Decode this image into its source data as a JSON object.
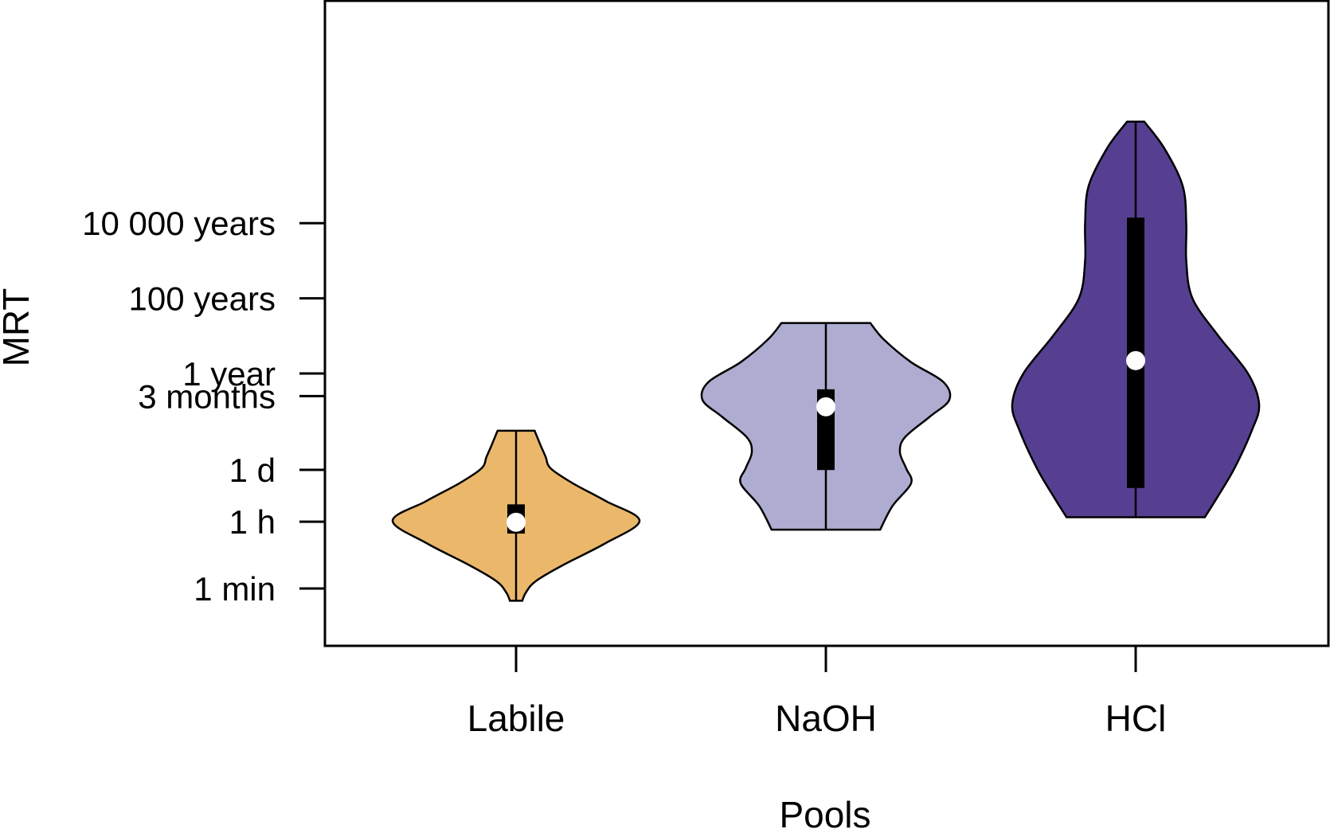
{
  "chart_data": {
    "type": "violin",
    "title": "",
    "xlabel": "Pools",
    "ylabel": "MRT",
    "y_scale": "log",
    "y_unit": "years",
    "y_ticks": [
      {
        "label": "1 min",
        "value": 1.9e-06
      },
      {
        "label": "1 h",
        "value": 0.000114
      },
      {
        "label": "1 d",
        "value": 0.00274
      },
      {
        "label": "3 months",
        "value": 0.25
      },
      {
        "label": "1 year",
        "value": 1
      },
      {
        "label": "100 years",
        "value": 100
      },
      {
        "label": "10 000 years",
        "value": 10000
      }
    ],
    "ylim": [
      5e-07,
      10000000
    ],
    "grid": false,
    "categories": [
      "Labile",
      "NaOH",
      "HCl"
    ],
    "series": [
      {
        "color": "#EBB86B",
        "min": 9e-07,
        "max": 0.03,
        "q1": 5.5e-05,
        "median": 0.00011,
        "q3": 0.00033,
        "density": [
          [
            9e-07,
            0.05
          ],
          [
            1.5e-06,
            0.08
          ],
          [
            3e-06,
            0.16
          ],
          [
            8e-06,
            0.38
          ],
          [
            3e-05,
            0.72
          ],
          [
            0.00012,
            1.0
          ],
          [
            0.0004,
            0.73
          ],
          [
            0.0012,
            0.46
          ],
          [
            0.003,
            0.28
          ],
          [
            0.006,
            0.24
          ],
          [
            0.012,
            0.2
          ],
          [
            0.025,
            0.16
          ],
          [
            0.03,
            0.15
          ]
        ]
      },
      {
        "color": "#AFACD1",
        "min": 7e-05,
        "max": 22,
        "q1": 0.0027,
        "median": 0.13,
        "q3": 0.38,
        "density": [
          [
            7e-05,
            0.44
          ],
          [
            0.0003,
            0.54
          ],
          [
            0.0012,
            0.69
          ],
          [
            0.003,
            0.65
          ],
          [
            0.008,
            0.6
          ],
          [
            0.02,
            0.64
          ],
          [
            0.07,
            0.84
          ],
          [
            0.2,
            1.0
          ],
          [
            0.6,
            0.95
          ],
          [
            2,
            0.69
          ],
          [
            8,
            0.47
          ],
          [
            22,
            0.36
          ]
        ]
      },
      {
        "color": "#563F91",
        "min": 0.00015,
        "max": 5000000,
        "q1": 0.0009,
        "median": 2.2,
        "q3": 14000,
        "density": [
          [
            0.00015,
            0.56
          ],
          [
            0.0005,
            0.66
          ],
          [
            0.003,
            0.8
          ],
          [
            0.03,
            0.94
          ],
          [
            0.15,
            1.0
          ],
          [
            1,
            0.91
          ],
          [
            10,
            0.67
          ],
          [
            100,
            0.46
          ],
          [
            1000,
            0.41
          ],
          [
            10000,
            0.41
          ],
          [
            100000,
            0.38
          ],
          [
            1000000,
            0.23
          ],
          [
            5000000,
            0.07
          ]
        ]
      }
    ]
  }
}
